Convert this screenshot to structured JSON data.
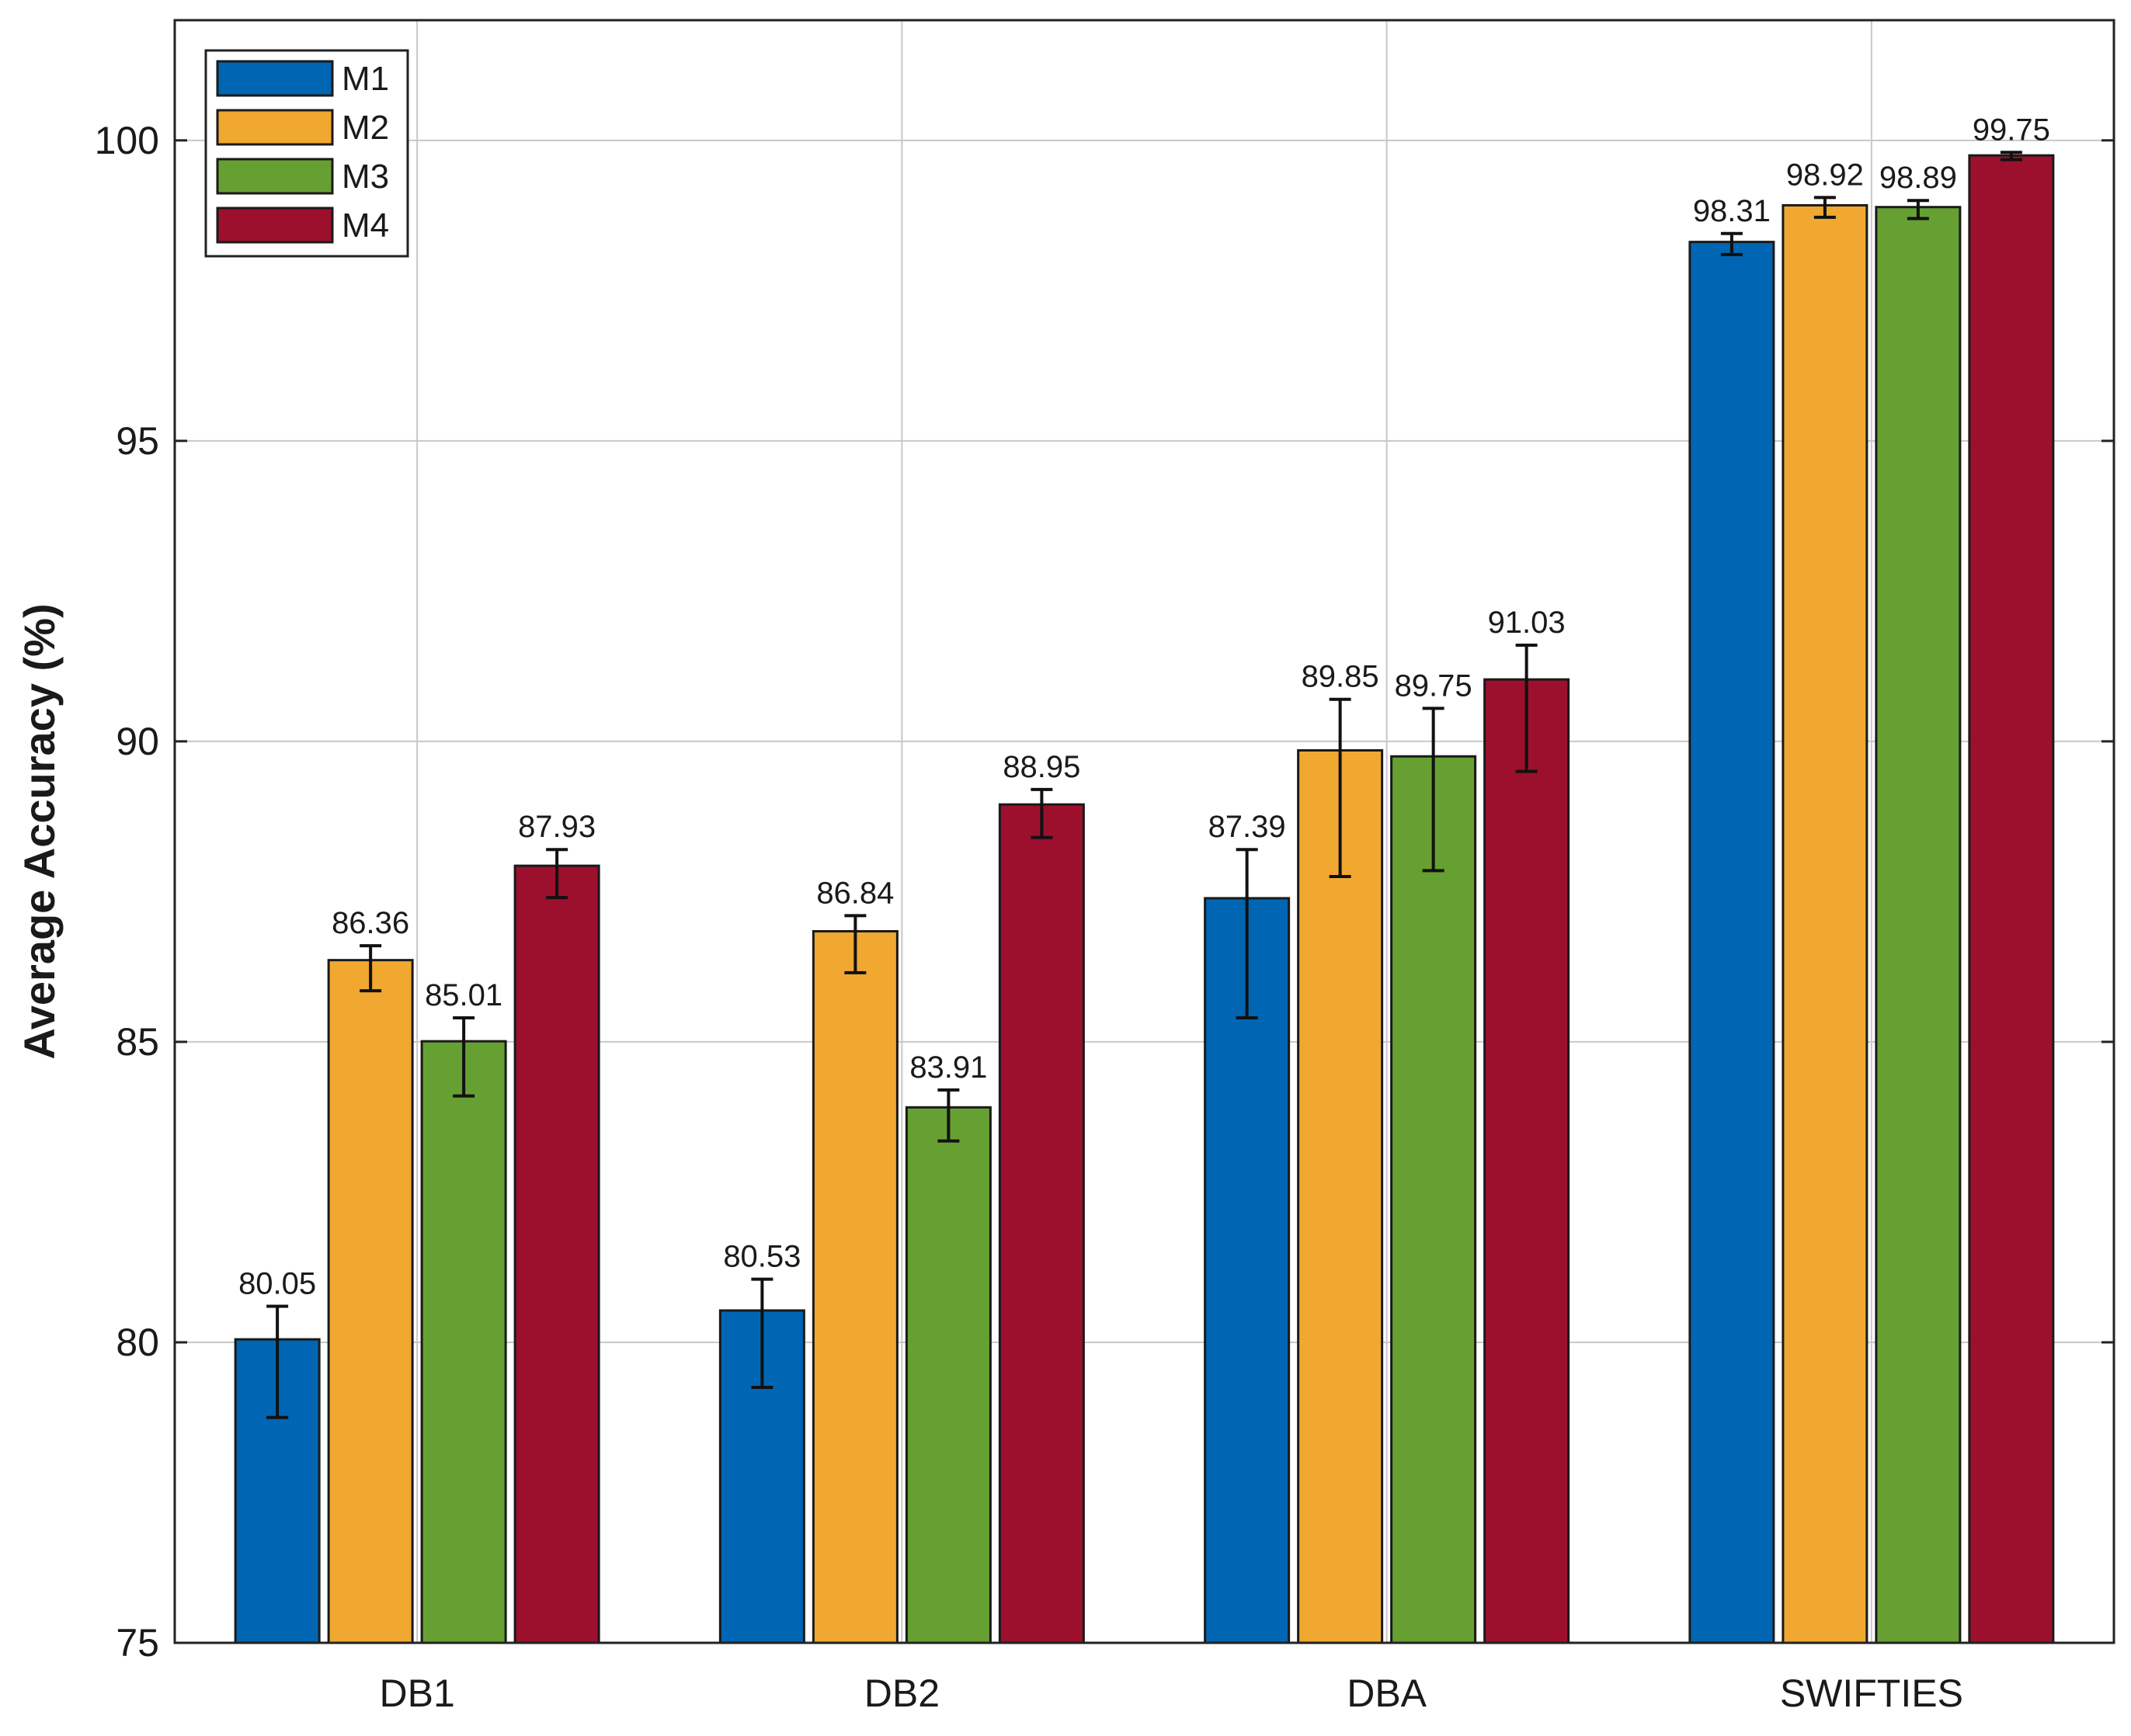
{
  "chart_data": {
    "type": "bar",
    "title": "",
    "xlabel": "",
    "ylabel": "Average Accuracy (%)",
    "ylim": [
      75,
      102
    ],
    "yticks": [
      75,
      80,
      85,
      90,
      95,
      100
    ],
    "ytick_labels": [
      "75",
      "80",
      "85",
      "90",
      "95",
      "100"
    ],
    "grid": true,
    "legend_position": "top-left",
    "categories": [
      "DB1",
      "DB2",
      "DBA",
      "SWIFTIES"
    ],
    "series": [
      {
        "name": "M1",
        "color": "#0066b3",
        "values": [
          80.05,
          80.53,
          87.39,
          98.31
        ],
        "labels": [
          "80.05",
          "80.53",
          "87.39",
          "98.31"
        ],
        "err_low": [
          78.75,
          79.25,
          85.4,
          98.1
        ],
        "err_high": [
          80.6,
          81.05,
          88.2,
          98.45
        ]
      },
      {
        "name": "M2",
        "color": "#f0a830",
        "values": [
          86.36,
          86.84,
          89.85,
          98.92
        ],
        "labels": [
          "86.36",
          "86.84",
          "89.85",
          "98.92"
        ],
        "err_low": [
          85.85,
          86.15,
          87.75,
          98.72
        ],
        "err_high": [
          86.6,
          87.1,
          90.7,
          99.05
        ]
      },
      {
        "name": "M3",
        "color": "#66a032",
        "values": [
          85.01,
          83.91,
          89.75,
          98.89
        ],
        "labels": [
          "85.01",
          "83.91",
          "89.75",
          "98.89"
        ],
        "err_low": [
          84.1,
          83.35,
          87.85,
          98.7
        ],
        "err_high": [
          85.4,
          84.2,
          90.55,
          99.0
        ]
      },
      {
        "name": "M4",
        "color": "#9c102d",
        "values": [
          87.93,
          88.95,
          91.03,
          99.75
        ],
        "labels": [
          "87.93",
          "88.95",
          "91.03",
          "99.75"
        ],
        "err_low": [
          87.4,
          88.4,
          89.5,
          99.68
        ],
        "err_high": [
          88.2,
          89.2,
          91.6,
          99.8
        ]
      }
    ]
  }
}
